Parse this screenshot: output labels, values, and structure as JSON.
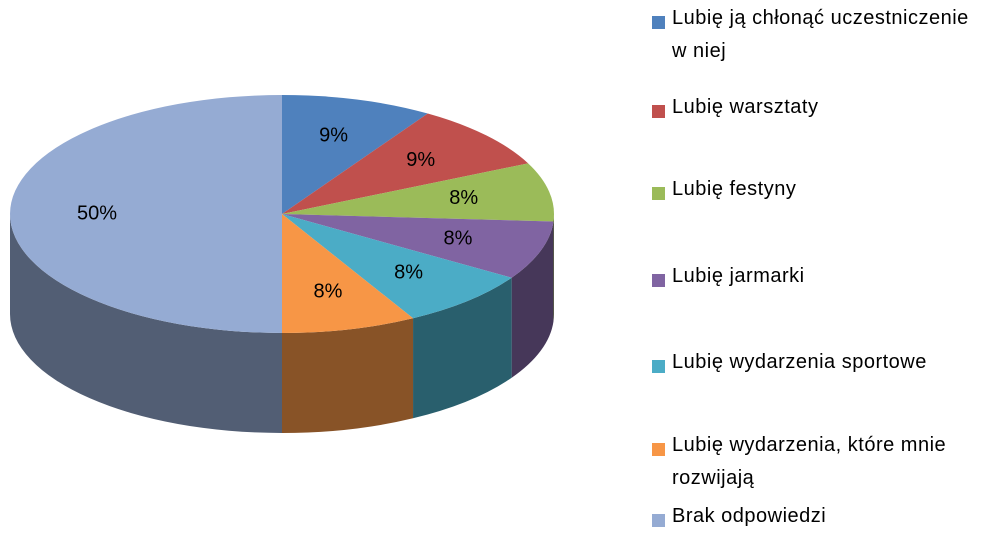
{
  "chart_data": {
    "type": "pie",
    "categories": [
      "Lubię ją chłonąć uczestniczenie w niej",
      "Lubię warsztaty",
      "Lubię festyny",
      "Lubię jarmarki",
      "Lubię wydarzenia sportowe",
      "Lubię wydarzenia, które mnie rozwijają",
      "Brak odpowiedzi"
    ],
    "values": [
      9,
      9,
      8,
      8,
      8,
      8,
      50
    ],
    "value_labels": [
      "9%",
      "9%",
      "8%",
      "8%",
      "8%",
      "8%",
      "50%"
    ],
    "colors": [
      "#4f81bd",
      "#c0504d",
      "#9bbb59",
      "#8064a2",
      "#4bacc6",
      "#f79646",
      "#95abd3"
    ],
    "legend": "right"
  }
}
